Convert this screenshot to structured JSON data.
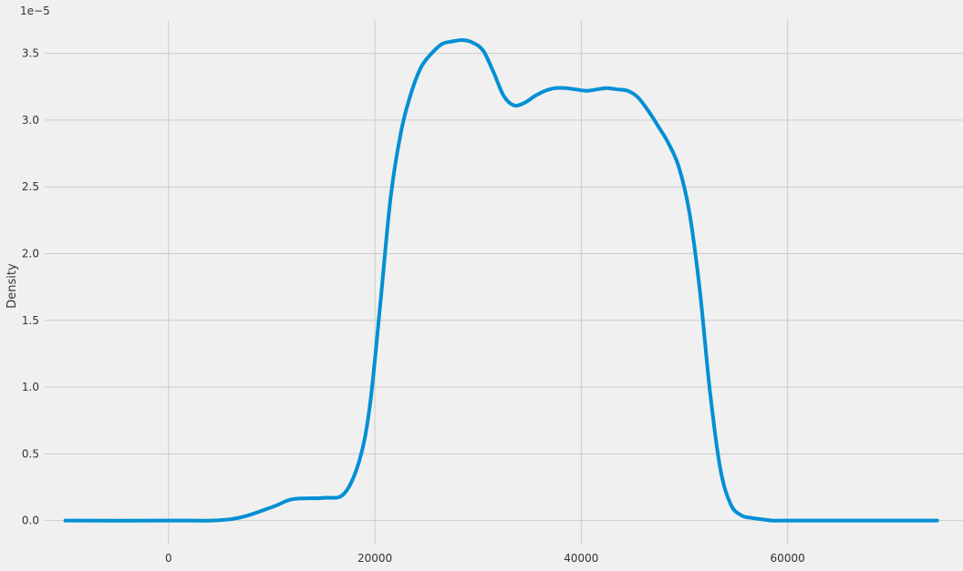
{
  "chart_data": {
    "type": "line",
    "ylabel": "Density",
    "xlabel": "",
    "y_offset_label": "1e−5",
    "xlim": [
      -12000,
      77000
    ],
    "ylim": [
      -0.18,
      3.75
    ],
    "x_ticks": [
      0,
      20000,
      40000,
      60000
    ],
    "x_tick_labels": [
      "0",
      "20000",
      "40000",
      "60000"
    ],
    "y_ticks": [
      0.0,
      0.5,
      1.0,
      1.5,
      2.0,
      2.5,
      3.0,
      3.5
    ],
    "y_tick_labels": [
      "0.0",
      "0.5",
      "1.0",
      "1.5",
      "2.0",
      "2.5",
      "3.0",
      "3.5"
    ],
    "grid": true,
    "series": [
      {
        "color": "#008fd5",
        "x": [
          -10000,
          0,
          6000,
          10000,
          12000,
          15000,
          17000,
          18500,
          19500,
          20500,
          21500,
          22500,
          23500,
          24500,
          25500,
          26500,
          27500,
          28500,
          29500,
          30500,
          31500,
          32500,
          33500,
          34500,
          35500,
          36500,
          37500,
          38500,
          39500,
          40500,
          41500,
          42500,
          43500,
          44500,
          45500,
          46500,
          47500,
          48500,
          49500,
          50500,
          51500,
          52500,
          53500,
          54500,
          55500,
          56500,
          57500,
          58500,
          60000,
          63000,
          68000,
          74500
        ],
        "y": [
          0.0,
          0.0,
          0.01,
          0.1,
          0.16,
          0.17,
          0.2,
          0.45,
          0.85,
          1.6,
          2.4,
          2.9,
          3.2,
          3.4,
          3.5,
          3.57,
          3.59,
          3.6,
          3.58,
          3.52,
          3.36,
          3.18,
          3.11,
          3.13,
          3.18,
          3.22,
          3.24,
          3.24,
          3.23,
          3.22,
          3.23,
          3.24,
          3.23,
          3.22,
          3.17,
          3.07,
          2.95,
          2.82,
          2.64,
          2.3,
          1.72,
          0.95,
          0.38,
          0.12,
          0.04,
          0.02,
          0.01,
          0.0,
          0.0,
          0.0,
          0.0,
          0.0
        ]
      }
    ]
  }
}
